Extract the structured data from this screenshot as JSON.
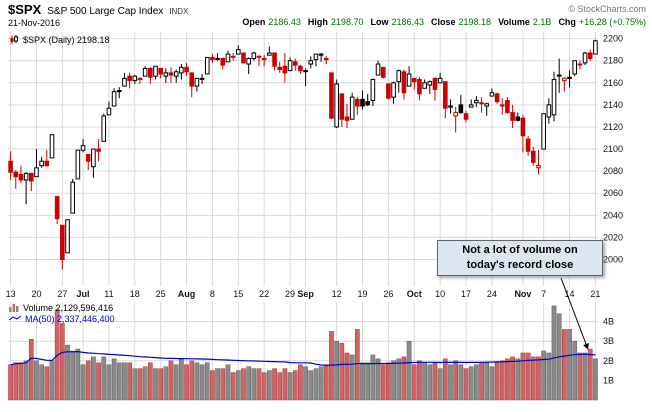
{
  "header": {
    "symbol": "$SPX",
    "name": "S&P 500 Large Cap Index",
    "exchange": "INDX",
    "copyright": "© StockCharts.com",
    "date": "21-Nov-2016",
    "quote": {
      "open_label": "Open",
      "open": "2186.43",
      "high_label": "High",
      "high": "2198.70",
      "low_label": "Low",
      "low": "2186.43",
      "close_label": "Close",
      "close": "2198.18",
      "volume_label": "Volume",
      "volume": "2.1B",
      "chg_label": "Chg",
      "chg": "+16.28 (+0.75%)"
    }
  },
  "price_pane": {
    "legend": "$SPX (Daily) 2198.18"
  },
  "volume_pane": {
    "volume_legend": "Volume 2,129,596,416",
    "ma_legend": "MA(50) 2,337,446,400"
  },
  "annotation": {
    "line1": "Not a lot of volume on",
    "line2": "today's record close"
  },
  "colors": {
    "candle_up": "#000000",
    "candle_down": "#cc0000",
    "vol_up": "#8a8a8a",
    "vol_up_stroke": "#5e5e5e",
    "vol_down": "#cc6666",
    "vol_down_stroke": "#a33a3a",
    "ma_line": "#0000cc",
    "grid": "#d9d9d9",
    "axis_text": "#111111",
    "quote_green": "#007000",
    "annotation_bg": "#dce6f1"
  },
  "chart_data": {
    "type": "candlestick",
    "title": "$SPX (Daily) 2198.18",
    "subtitle_volume": "Volume 2,129,596,416",
    "subtitle_ma": "MA(50) 2,337,446,400",
    "legend_position": "top-left",
    "grid": true,
    "price_axis": {
      "min": 1976,
      "max": 2206,
      "ticks": [
        2000,
        2020,
        2040,
        2060,
        2080,
        2100,
        2120,
        2140,
        2160,
        2180,
        2200
      ]
    },
    "volume_axis": {
      "max_b": 5.0,
      "ticks_b": [
        1,
        2,
        3,
        4
      ]
    },
    "x_ticks": [
      {
        "i": 0,
        "label": "13"
      },
      {
        "i": 5,
        "label": "20"
      },
      {
        "i": 10,
        "label": "27"
      },
      {
        "i": 14,
        "label": "Jul"
      },
      {
        "i": 19,
        "label": "11"
      },
      {
        "i": 24,
        "label": "18"
      },
      {
        "i": 29,
        "label": "25"
      },
      {
        "i": 34,
        "label": "Aug"
      },
      {
        "i": 39,
        "label": "8"
      },
      {
        "i": 44,
        "label": "15"
      },
      {
        "i": 49,
        "label": "22"
      },
      {
        "i": 54,
        "label": "29"
      },
      {
        "i": 57,
        "label": "Sep"
      },
      {
        "i": 63,
        "label": "12"
      },
      {
        "i": 68,
        "label": "19"
      },
      {
        "i": 73,
        "label": "26"
      },
      {
        "i": 78,
        "label": "Oct"
      },
      {
        "i": 83,
        "label": "10"
      },
      {
        "i": 88,
        "label": "17"
      },
      {
        "i": 93,
        "label": "24"
      },
      {
        "i": 99,
        "label": "Nov"
      },
      {
        "i": 103,
        "label": "7"
      },
      {
        "i": 108,
        "label": "14"
      },
      {
        "i": 113,
        "label": "21"
      }
    ],
    "volume_ma_window": 50,
    "candles_format": [
      "date",
      "open",
      "high",
      "low",
      "close",
      "volume_billions"
    ],
    "candles": [
      [
        "Jun 13",
        2089,
        2098,
        2072,
        2079,
        1.8
      ],
      [
        "Jun 14",
        2079,
        2081,
        2064,
        2075,
        1.9
      ],
      [
        "Jun 15",
        2077,
        2085,
        2069,
        2072,
        1.9
      ],
      [
        "Jun 16",
        2072,
        2079,
        2050,
        2078,
        2.0
      ],
      [
        "Jun 17",
        2078,
        2078,
        2062,
        2071,
        3.1
      ],
      [
        "Jun 20",
        2075,
        2100,
        2075,
        2083,
        2.0
      ],
      [
        "Jun 21",
        2085,
        2093,
        2083,
        2089,
        1.8
      ],
      [
        "Jun 22",
        2089,
        2099,
        2084,
        2085,
        1.7
      ],
      [
        "Jun 23",
        2092,
        2113,
        2092,
        2113,
        2.0
      ],
      [
        "Jun 24",
        2057,
        2057,
        2032,
        2037,
        4.6
      ],
      [
        "Jun 27",
        2031,
        2031,
        1991,
        2000,
        3.9
      ],
      [
        "Jun 28",
        2006,
        2036,
        2006,
        2036,
        2.8
      ],
      [
        "Jun 29",
        2042,
        2073,
        2042,
        2070,
        2.5
      ],
      [
        "Jun 30",
        2073,
        2099,
        2073,
        2099,
        2.6
      ],
      [
        "Jul 1",
        2099,
        2109,
        2097,
        2103,
        1.8
      ],
      [
        "Jul 5",
        2095,
        2095,
        2081,
        2089,
        2.0
      ],
      [
        "Jul 6",
        2084,
        2100,
        2074,
        2100,
        2.2
      ],
      [
        "Jul 7",
        2100,
        2109,
        2089,
        2098,
        1.9
      ],
      [
        "Jul 8",
        2107,
        2132,
        2107,
        2130,
        2.2
      ],
      [
        "Jul 11",
        2131,
        2143,
        2131,
        2137,
        1.8
      ],
      [
        "Jul 12",
        2139,
        2155,
        2139,
        2152,
        2.1
      ],
      [
        "Jul 13",
        2153,
        2156,
        2146,
        2152,
        1.9
      ],
      [
        "Jul 14",
        2157,
        2169,
        2157,
        2164,
        1.9
      ],
      [
        "Jul 15",
        2166,
        2169,
        2155,
        2162,
        1.9
      ],
      [
        "Jul 18",
        2162,
        2167,
        2159,
        2166,
        1.6
      ],
      [
        "Jul 19",
        2163,
        2165,
        2159,
        2164,
        1.6
      ],
      [
        "Jul 20",
        2166,
        2175,
        2166,
        2173,
        1.7
      ],
      [
        "Jul 21",
        2173,
        2174,
        2159,
        2165,
        1.9
      ],
      [
        "Jul 22",
        2166,
        2175,
        2163,
        2175,
        1.6
      ],
      [
        "Jul 25",
        2173,
        2173,
        2164,
        2168,
        1.6
      ],
      [
        "Jul 26",
        2166,
        2173,
        2160,
        2169,
        1.7
      ],
      [
        "Jul 27",
        2169,
        2174,
        2160,
        2167,
        2.0
      ],
      [
        "Jul 28",
        2166,
        2172,
        2160,
        2170,
        1.8
      ],
      [
        "Jul 29",
        2169,
        2177,
        2163,
        2174,
        2.1
      ],
      [
        "Aug 1",
        2174,
        2178,
        2166,
        2170,
        1.8
      ],
      [
        "Aug 2",
        2169,
        2169,
        2147,
        2157,
        2.0
      ],
      [
        "Aug 3",
        2157,
        2163,
        2152,
        2164,
        1.9
      ],
      [
        "Aug 4",
        2164,
        2168,
        2159,
        2164,
        1.8
      ],
      [
        "Aug 5",
        2168,
        2183,
        2168,
        2183,
        1.9
      ],
      [
        "Aug 8",
        2183,
        2186,
        2178,
        2181,
        1.5
      ],
      [
        "Aug 9",
        2182,
        2187,
        2180,
        2182,
        1.6
      ],
      [
        "Aug 10",
        2182,
        2183,
        2172,
        2176,
        1.6
      ],
      [
        "Aug 11",
        2179,
        2189,
        2179,
        2186,
        1.8
      ],
      [
        "Aug 12",
        2184,
        2187,
        2180,
        2184,
        1.4
      ],
      [
        "Aug 15",
        2186,
        2194,
        2186,
        2190,
        1.5
      ],
      [
        "Aug 16",
        2187,
        2187,
        2178,
        2178,
        1.6
      ],
      [
        "Aug 17",
        2177,
        2183,
        2168,
        2182,
        1.7
      ],
      [
        "Aug 18",
        2182,
        2188,
        2180,
        2187,
        1.6
      ],
      [
        "Aug 19",
        2184,
        2185,
        2175,
        2184,
        1.6
      ],
      [
        "Aug 22",
        2181,
        2185,
        2175,
        2182,
        1.4
      ],
      [
        "Aug 23",
        2185,
        2193,
        2185,
        2187,
        1.5
      ],
      [
        "Aug 24",
        2187,
        2187,
        2171,
        2175,
        1.6
      ],
      [
        "Aug 25",
        2174,
        2179,
        2169,
        2172,
        1.4
      ],
      [
        "Aug 26",
        2175,
        2187,
        2160,
        2169,
        1.6
      ],
      [
        "Aug 29",
        2171,
        2183,
        2171,
        2180,
        1.4
      ],
      [
        "Aug 30",
        2179,
        2182,
        2171,
        2176,
        1.5
      ],
      [
        "Aug 31",
        2175,
        2176,
        2168,
        2171,
        1.8
      ],
      [
        "Sep 1",
        2171,
        2173,
        2157,
        2171,
        1.7
      ],
      [
        "Sep 2",
        2177,
        2184,
        2173,
        2180,
        1.5
      ],
      [
        "Sep 6",
        2181,
        2186,
        2175,
        2186,
        1.6
      ],
      [
        "Sep 7",
        2185,
        2187,
        2179,
        2186,
        1.7
      ],
      [
        "Sep 8",
        2182,
        2184,
        2177,
        2181,
        1.8
      ],
      [
        "Sep 9",
        2169,
        2169,
        2127,
        2128,
        3.5
      ],
      [
        "Sep 12",
        2120,
        2163,
        2119,
        2159,
        3.0
      ],
      [
        "Sep 13",
        2150,
        2150,
        2120,
        2127,
        2.9
      ],
      [
        "Sep 14",
        2129,
        2141,
        2119,
        2126,
        2.4
      ],
      [
        "Sep 15",
        2127,
        2151,
        2127,
        2147,
        2.3
      ],
      [
        "Sep 16",
        2145,
        2147,
        2131,
        2139,
        3.6
      ],
      [
        "Sep 19",
        2145,
        2153,
        2136,
        2139,
        1.9
      ],
      [
        "Sep 20",
        2143,
        2150,
        2139,
        2140,
        1.9
      ],
      [
        "Sep 21",
        2144,
        2164,
        2139,
        2163,
        2.3
      ],
      [
        "Sep 22",
        2167,
        2180,
        2167,
        2177,
        2.1
      ],
      [
        "Sep 23",
        2174,
        2174,
        2164,
        2165,
        1.8
      ],
      [
        "Sep 26",
        2159,
        2159,
        2145,
        2146,
        1.9
      ],
      [
        "Sep 27",
        2147,
        2161,
        2141,
        2160,
        2.0
      ],
      [
        "Sep 28",
        2161,
        2172,
        2151,
        2171,
        2.1
      ],
      [
        "Sep 29",
        2170,
        2172,
        2145,
        2151,
        2.2
      ],
      [
        "Sep 30",
        2157,
        2175,
        2157,
        2168,
        3.0
      ],
      [
        "Oct 3",
        2164,
        2164,
        2154,
        2161,
        1.8
      ],
      [
        "Oct 4",
        2163,
        2165,
        2144,
        2150,
        2.0
      ],
      [
        "Oct 5",
        2155,
        2163,
        2155,
        2160,
        1.9
      ],
      [
        "Oct 6",
        2158,
        2162,
        2150,
        2161,
        1.8
      ],
      [
        "Oct 7",
        2164,
        2165,
        2144,
        2154,
        1.9
      ],
      [
        "Oct 10",
        2160,
        2169,
        2160,
        2164,
        1.6
      ],
      [
        "Oct 11",
        2161,
        2161,
        2128,
        2137,
        2.1
      ],
      [
        "Oct 12",
        2138,
        2145,
        2132,
        2139,
        1.8
      ],
      [
        "Oct 13",
        2130,
        2138,
        2115,
        2133,
        2.0
      ],
      [
        "Oct 14",
        2140,
        2149,
        2132,
        2133,
        1.8
      ],
      [
        "Oct 17",
        2132,
        2135,
        2124,
        2127,
        1.6
      ],
      [
        "Oct 18",
        2138,
        2145,
        2138,
        2140,
        1.7
      ],
      [
        "Oct 19",
        2142,
        2148,
        2138,
        2144,
        1.8
      ],
      [
        "Oct 20",
        2142,
        2147,
        2133,
        2141,
        1.9
      ],
      [
        "Oct 21",
        2139,
        2142,
        2130,
        2141,
        1.9
      ],
      [
        "Oct 24",
        2148,
        2155,
        2148,
        2151,
        1.7
      ],
      [
        "Oct 25",
        2150,
        2151,
        2141,
        2143,
        1.9
      ],
      [
        "Oct 26",
        2140,
        2146,
        2131,
        2139,
        2.0
      ],
      [
        "Oct 27",
        2144,
        2147,
        2132,
        2133,
        2.1
      ],
      [
        "Oct 28",
        2133,
        2140,
        2119,
        2126,
        2.2
      ],
      [
        "Oct 31",
        2129,
        2133,
        2125,
        2126,
        2.1
      ],
      [
        "Nov 1",
        2128,
        2131,
        2097,
        2112,
        2.4
      ],
      [
        "Nov 2",
        2109,
        2112,
        2094,
        2098,
        2.4
      ],
      [
        "Nov 3",
        2098,
        2102,
        2085,
        2088,
        2.2
      ],
      [
        "Nov 4",
        2083,
        2099,
        2077,
        2085,
        2.2
      ],
      [
        "Nov 7",
        2100,
        2132,
        2100,
        2132,
        2.5
      ],
      [
        "Nov 8",
        2129,
        2146,
        2123,
        2140,
        2.4
      ],
      [
        "Nov 9",
        2131,
        2170,
        2125,
        2163,
        4.8
      ],
      [
        "Nov 10",
        2167,
        2182,
        2151,
        2167,
        4.4
      ],
      [
        "Nov 11",
        2162,
        2165,
        2152,
        2164,
        3.6
      ],
      [
        "Nov 14",
        2165,
        2171,
        2156,
        2164,
        3.6
      ],
      [
        "Nov 15",
        2168,
        2180,
        2166,
        2180,
        3.0
      ],
      [
        "Nov 16",
        2177,
        2180,
        2172,
        2177,
        2.4
      ],
      [
        "Nov 17",
        2178,
        2188,
        2176,
        2187,
        2.4
      ],
      [
        "Nov 18",
        2187,
        2190,
        2180,
        2182,
        2.6
      ],
      [
        "Nov 21",
        2186,
        2199,
        2186,
        2198,
        2.1
      ]
    ]
  }
}
